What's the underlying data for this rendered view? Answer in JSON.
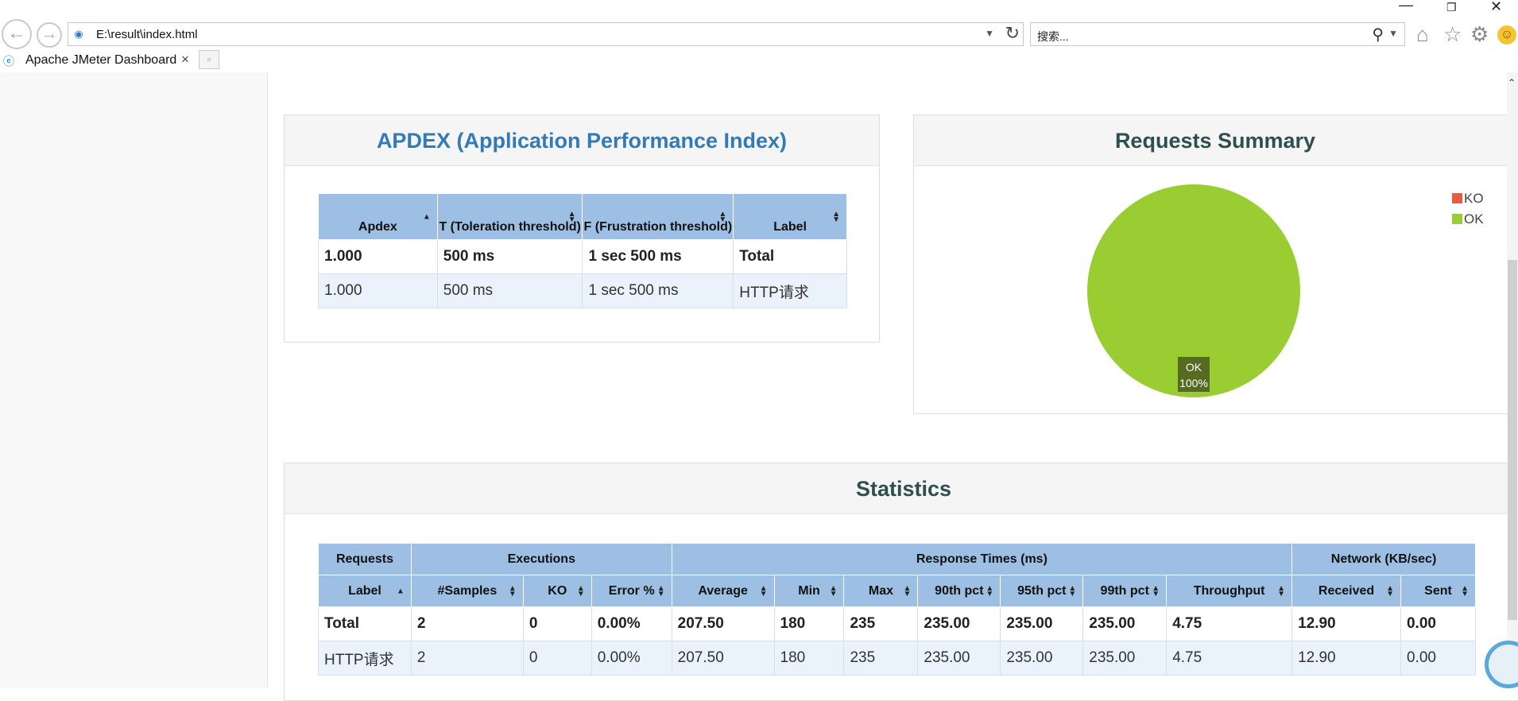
{
  "browser": {
    "url": "E:\\result\\index.html",
    "search_placeholder": "搜索...",
    "tab_title": "Apache JMeter Dashboard",
    "tab_close": "×",
    "back": "←",
    "forward": "→",
    "icons": [
      "back-icon",
      "forward-icon",
      "refresh-icon",
      "search-icon",
      "home-icon",
      "star-icon",
      "gear-icon",
      "smiley-icon"
    ]
  },
  "apdex": {
    "title": "APDEX (Application Performance Index)",
    "headers": [
      "Apdex",
      "T (Toleration threshold)",
      "F (Frustration threshold)",
      "Label"
    ],
    "rows": [
      [
        "1.000",
        "500 ms",
        "1 sec 500 ms",
        "Total"
      ],
      [
        "1.000",
        "500 ms",
        "1 sec 500 ms",
        "HTTP请求"
      ]
    ]
  },
  "summary": {
    "title": "Requests Summary",
    "legend": [
      {
        "name": "KO",
        "color": "#f05a3c"
      },
      {
        "name": "OK",
        "color": "#9acd32"
      }
    ],
    "slice_label": "OK",
    "slice_pct": "100%"
  },
  "statistics": {
    "title": "Statistics",
    "groups": [
      "Requests",
      "Executions",
      "Response Times (ms)",
      "Network (KB/sec)"
    ],
    "headers": [
      "Label",
      "#Samples",
      "KO",
      "Error %",
      "Average",
      "Min",
      "Max",
      "90th pct",
      "95th pct",
      "99th pct",
      "Throughput",
      "Received",
      "Sent"
    ],
    "rows": [
      [
        "Total",
        "2",
        "0",
        "0.00%",
        "207.50",
        "180",
        "235",
        "235.00",
        "235.00",
        "235.00",
        "4.75",
        "12.90",
        "0.00"
      ],
      [
        "HTTP请求",
        "2",
        "0",
        "0.00%",
        "207.50",
        "180",
        "235",
        "235.00",
        "235.00",
        "235.00",
        "4.75",
        "12.90",
        "0.00"
      ]
    ]
  },
  "chart_data": {
    "type": "pie",
    "title": "Requests Summary",
    "categories": [
      "KO",
      "OK"
    ],
    "values": [
      0,
      100
    ],
    "colors": [
      "#f05a3c",
      "#9acd32"
    ],
    "legend_position": "top-right"
  }
}
